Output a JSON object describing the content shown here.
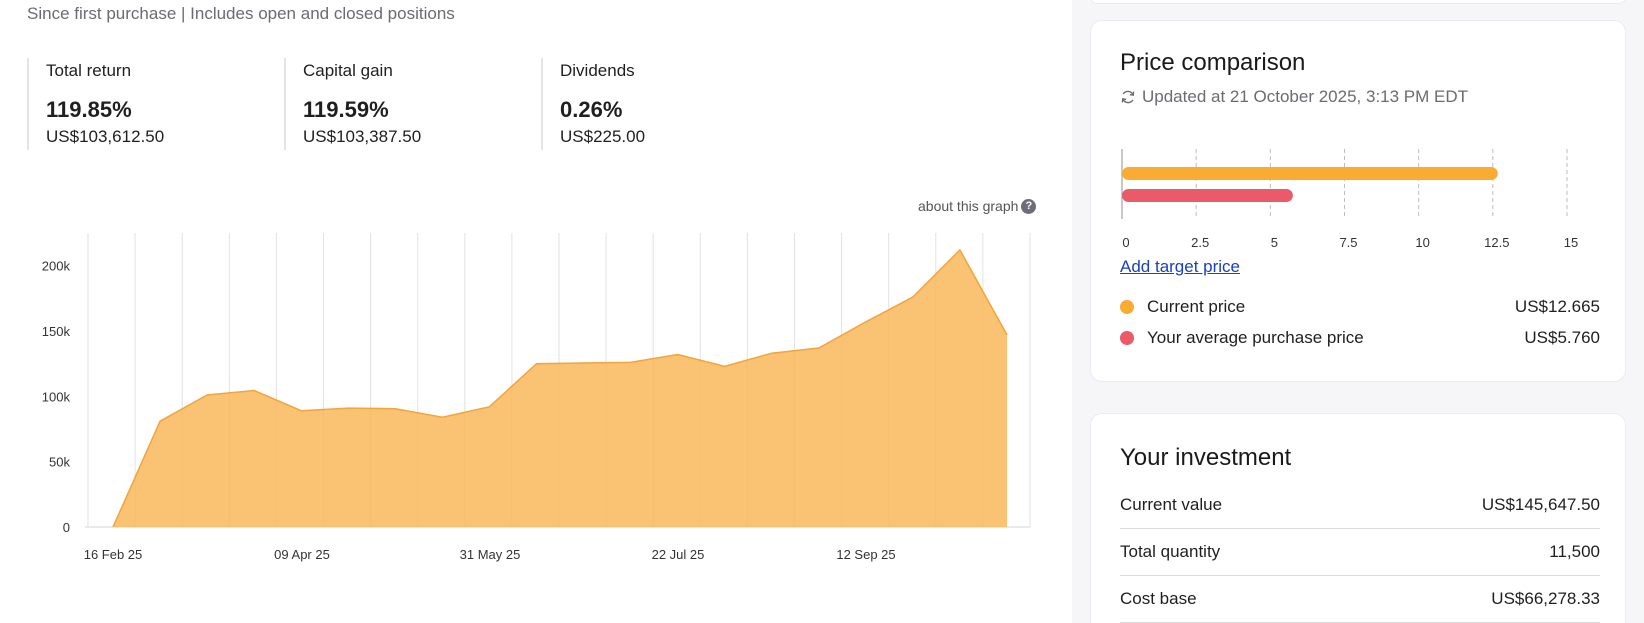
{
  "performance": {
    "subtitle": "Since first purchase | Includes open and closed positions",
    "stats": [
      {
        "label": "Total return",
        "percent": "119.85%",
        "amount": "US$103,612.50"
      },
      {
        "label": "Capital gain",
        "percent": "119.59%",
        "amount": "US$103,387.50"
      },
      {
        "label": "Dividends",
        "percent": "0.26%",
        "amount": "US$225.00"
      }
    ],
    "about_link": "about this graph",
    "about_icon": "question-icon"
  },
  "chart_data": [
    {
      "type": "area",
      "title": "",
      "xlabel": "",
      "ylabel": "",
      "x_tick_labels": [
        "16 Feb 25",
        "09 Apr 25",
        "31 May 25",
        "22 Jul 25",
        "12 Sep 25"
      ],
      "y_tick_labels": [
        "0",
        "50k",
        "100k",
        "150k",
        "200k"
      ],
      "ylim": [
        0,
        225000
      ],
      "grid": "vertical",
      "color": "#f8b85a",
      "series": [
        {
          "values": [
            0,
            81000,
            101000,
            104500,
            89000,
            91000,
            90500,
            84000,
            92000,
            125000,
            125500,
            126000,
            132000,
            123000,
            133000,
            137000,
            157000,
            176000,
            212000,
            147000
          ]
        }
      ]
    },
    {
      "type": "bar",
      "orientation": "horizontal",
      "categories": [
        "Current price",
        "Your average purchase price"
      ],
      "values": [
        12.665,
        5.76
      ],
      "xlim": [
        0,
        15
      ],
      "x_tick_labels": [
        "0",
        "2.5",
        "5",
        "7.5",
        "10",
        "12.5",
        "15"
      ],
      "colors": [
        "#f9ab33",
        "#eb5a68"
      ],
      "grid": "vertical-dashed"
    }
  ],
  "price_comparison": {
    "title": "Price comparison",
    "updated": "Updated at 21 October 2025, 3:13 PM EDT",
    "refresh_icon": "refresh-icon",
    "add_target": "Add target price",
    "legend": [
      {
        "name": "Current price",
        "value": "US$12.665",
        "color": "#f9ab33"
      },
      {
        "name": "Your average purchase price",
        "value": "US$5.760",
        "color": "#eb5a68"
      }
    ]
  },
  "investment": {
    "title": "Your investment",
    "rows": [
      {
        "label": "Current value",
        "value": "US$145,647.50"
      },
      {
        "label": "Total quantity",
        "value": "11,500"
      },
      {
        "label": "Cost base",
        "value": "US$66,278.33"
      }
    ]
  }
}
